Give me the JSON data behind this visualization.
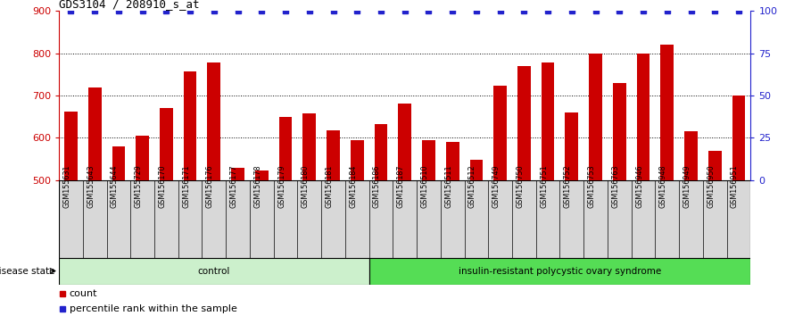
{
  "title": "GDS3104 / 208910_s_at",
  "categories": [
    "GSM155631",
    "GSM155643",
    "GSM155644",
    "GSM155729",
    "GSM156170",
    "GSM156171",
    "GSM156176",
    "GSM156177",
    "GSM156178",
    "GSM156179",
    "GSM156180",
    "GSM156181",
    "GSM156184",
    "GSM156186",
    "GSM156187",
    "GSM156510",
    "GSM156511",
    "GSM156512",
    "GSM156749",
    "GSM156750",
    "GSM156751",
    "GSM156752",
    "GSM156753",
    "GSM156763",
    "GSM156946",
    "GSM156948",
    "GSM156949",
    "GSM156950",
    "GSM156951"
  ],
  "bar_values": [
    662,
    720,
    580,
    605,
    670,
    757,
    778,
    530,
    522,
    650,
    657,
    617,
    595,
    632,
    682,
    595,
    590,
    548,
    723,
    770,
    778,
    660,
    800,
    730,
    800,
    820,
    615,
    570,
    700
  ],
  "group_labels": [
    "control",
    "insulin-resistant polycystic ovary syndrome"
  ],
  "group_sizes": [
    13,
    16
  ],
  "group_colors": [
    "#ccf0cc",
    "#55dd55"
  ],
  "bar_color": "#cc0000",
  "dot_color": "#2222cc",
  "ylim_left": [
    500,
    900
  ],
  "ylim_right": [
    0,
    100
  ],
  "yticks_left": [
    500,
    600,
    700,
    800,
    900
  ],
  "yticks_right": [
    0,
    25,
    50,
    75,
    100
  ],
  "box_bg": "#d8d8d8",
  "legend_items": [
    "count",
    "percentile rank within the sample"
  ]
}
